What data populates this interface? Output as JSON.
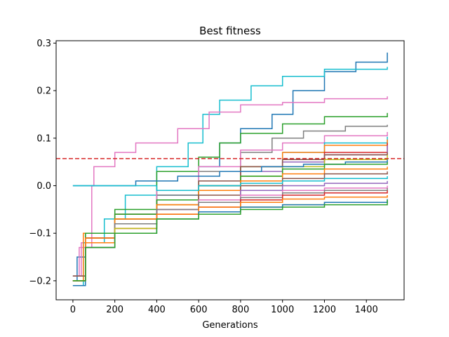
{
  "chart_data": {
    "type": "line",
    "title": "Best fitness",
    "xlabel": "Generations",
    "ylabel": "",
    "xlim": [
      -80,
      1580
    ],
    "ylim": [
      -0.24,
      0.305
    ],
    "xticks": [
      0,
      200,
      400,
      600,
      800,
      1000,
      1200,
      1400
    ],
    "xtick_labels": [
      "0",
      "200",
      "400",
      "600",
      "800",
      "1000",
      "1200",
      "1400"
    ],
    "yticks": [
      -0.2,
      -0.1,
      0.0,
      0.1,
      0.2,
      0.3
    ],
    "ytick_labels": [
      "−0.2",
      "−0.1",
      "0.0",
      "0.1",
      "0.2",
      "0.3"
    ],
    "grid": false,
    "legend": "none",
    "reference_line": {
      "y": 0.057,
      "color": "#d62728",
      "style": "dashed"
    },
    "series": [
      {
        "color": "#1f77b4",
        "points": [
          [
            0,
            -0.2
          ],
          [
            20,
            -0.15
          ],
          [
            60,
            -0.1
          ],
          [
            200,
            -0.06
          ],
          [
            400,
            -0.02
          ],
          [
            600,
            0.04
          ],
          [
            700,
            0.09
          ],
          [
            800,
            0.12
          ],
          [
            950,
            0.15
          ],
          [
            1050,
            0.2
          ],
          [
            1200,
            0.24
          ],
          [
            1350,
            0.26
          ],
          [
            1500,
            0.28
          ]
        ]
      },
      {
        "color": "#17becf",
        "points": [
          [
            0,
            -0.21
          ],
          [
            50,
            -0.12
          ],
          [
            150,
            -0.07
          ],
          [
            250,
            -0.02
          ],
          [
            400,
            0.04
          ],
          [
            550,
            0.09
          ],
          [
            620,
            0.15
          ],
          [
            700,
            0.18
          ],
          [
            850,
            0.21
          ],
          [
            1000,
            0.23
          ],
          [
            1200,
            0.245
          ],
          [
            1500,
            0.25
          ]
        ]
      },
      {
        "color": "#e377c2",
        "points": [
          [
            0,
            -0.19
          ],
          [
            30,
            -0.13
          ],
          [
            90,
            0.0
          ],
          [
            100,
            0.04
          ],
          [
            200,
            0.07
          ],
          [
            300,
            0.09
          ],
          [
            500,
            0.12
          ],
          [
            650,
            0.155
          ],
          [
            800,
            0.17
          ],
          [
            1000,
            0.175
          ],
          [
            1200,
            0.183
          ],
          [
            1500,
            0.188
          ]
        ]
      },
      {
        "color": "#2ca02c",
        "points": [
          [
            0,
            -0.19
          ],
          [
            60,
            -0.1
          ],
          [
            200,
            -0.05
          ],
          [
            400,
            0.03
          ],
          [
            600,
            0.06
          ],
          [
            700,
            0.09
          ],
          [
            800,
            0.11
          ],
          [
            1000,
            0.13
          ],
          [
            1200,
            0.145
          ],
          [
            1500,
            0.153
          ]
        ]
      },
      {
        "color": "#7f7f7f",
        "points": [
          [
            0,
            -0.2
          ],
          [
            60,
            -0.11
          ],
          [
            200,
            -0.06
          ],
          [
            400,
            -0.02
          ],
          [
            600,
            0.03
          ],
          [
            800,
            0.07
          ],
          [
            950,
            0.1
          ],
          [
            1100,
            0.115
          ],
          [
            1300,
            0.125
          ],
          [
            1500,
            0.128
          ]
        ]
      },
      {
        "color": "#e377c2",
        "points": [
          [
            0,
            -0.19
          ],
          [
            40,
            -0.12
          ],
          [
            200,
            -0.07
          ],
          [
            400,
            -0.01
          ],
          [
            600,
            0.04
          ],
          [
            800,
            0.075
          ],
          [
            1000,
            0.09
          ],
          [
            1200,
            0.105
          ],
          [
            1500,
            0.113
          ]
        ]
      },
      {
        "color": "#17becf",
        "points": [
          [
            0,
            -0.2
          ],
          [
            50,
            -0.12
          ],
          [
            200,
            -0.07
          ],
          [
            400,
            -0.03
          ],
          [
            600,
            0.01
          ],
          [
            800,
            0.04
          ],
          [
            1000,
            0.07
          ],
          [
            1200,
            0.09
          ],
          [
            1500,
            0.103
          ]
        ]
      },
      {
        "color": "#ff7f0e",
        "points": [
          [
            0,
            -0.2
          ],
          [
            50,
            -0.1
          ],
          [
            200,
            -0.06
          ],
          [
            400,
            -0.03
          ],
          [
            600,
            0.01
          ],
          [
            800,
            0.04
          ],
          [
            1000,
            0.07
          ],
          [
            1200,
            0.085
          ],
          [
            1500,
            0.097
          ]
        ]
      },
      {
        "color": "#d62728",
        "points": [
          [
            0,
            -0.2
          ],
          [
            60,
            -0.11
          ],
          [
            200,
            -0.07
          ],
          [
            400,
            -0.03
          ],
          [
            600,
            0.0
          ],
          [
            800,
            0.03
          ],
          [
            1000,
            0.05
          ],
          [
            1200,
            0.07
          ],
          [
            1500,
            0.09
          ]
        ]
      },
      {
        "color": "#9467bd",
        "points": [
          [
            0,
            -0.2
          ],
          [
            60,
            -0.12
          ],
          [
            200,
            -0.08
          ],
          [
            400,
            -0.04
          ],
          [
            600,
            0.0
          ],
          [
            800,
            0.03
          ],
          [
            1000,
            0.05
          ],
          [
            1200,
            0.065
          ],
          [
            1500,
            0.085
          ]
        ]
      },
      {
        "color": "#8c564b",
        "points": [
          [
            0,
            -0.19
          ],
          [
            60,
            -0.11
          ],
          [
            200,
            -0.07
          ],
          [
            400,
            -0.03
          ],
          [
            600,
            0.01
          ],
          [
            800,
            0.04
          ],
          [
            1000,
            0.055
          ],
          [
            1200,
            0.065
          ],
          [
            1500,
            0.07
          ]
        ]
      },
      {
        "color": "#bcbd22",
        "points": [
          [
            0,
            -0.2
          ],
          [
            60,
            -0.12
          ],
          [
            200,
            -0.07
          ],
          [
            400,
            -0.04
          ],
          [
            600,
            -0.01
          ],
          [
            800,
            0.02
          ],
          [
            1000,
            0.04
          ],
          [
            1200,
            0.055
          ],
          [
            1500,
            0.065
          ]
        ]
      },
      {
        "color": "#1f77b4",
        "points": [
          [
            0,
            0.0
          ],
          [
            150,
            0.0
          ],
          [
            300,
            0.01
          ],
          [
            500,
            0.02
          ],
          [
            700,
            0.03
          ],
          [
            900,
            0.04
          ],
          [
            1100,
            0.045
          ],
          [
            1300,
            0.05
          ],
          [
            1500,
            0.055
          ]
        ]
      },
      {
        "color": "#2ca02c",
        "points": [
          [
            0,
            -0.2
          ],
          [
            60,
            -0.1
          ],
          [
            200,
            -0.06
          ],
          [
            400,
            -0.03
          ],
          [
            600,
            0.0
          ],
          [
            800,
            0.02
          ],
          [
            1000,
            0.035
          ],
          [
            1200,
            0.045
          ],
          [
            1500,
            0.05
          ]
        ]
      },
      {
        "color": "#ff7f0e",
        "points": [
          [
            0,
            -0.2
          ],
          [
            60,
            -0.11
          ],
          [
            200,
            -0.07
          ],
          [
            400,
            -0.04
          ],
          [
            600,
            -0.01
          ],
          [
            800,
            0.01
          ],
          [
            1000,
            0.025
          ],
          [
            1200,
            0.035
          ],
          [
            1500,
            0.04
          ]
        ]
      },
      {
        "color": "#8c564b",
        "points": [
          [
            0,
            -0.2
          ],
          [
            60,
            -0.12
          ],
          [
            200,
            -0.08
          ],
          [
            400,
            -0.05
          ],
          [
            600,
            -0.02
          ],
          [
            800,
            0.0
          ],
          [
            1000,
            0.015
          ],
          [
            1200,
            0.025
          ],
          [
            1500,
            0.03
          ]
        ]
      },
      {
        "color": "#17becf",
        "points": [
          [
            0,
            0.0
          ],
          [
            200,
            0.0
          ],
          [
            400,
            -0.01
          ],
          [
            600,
            0.0
          ],
          [
            800,
            0.005
          ],
          [
            1000,
            0.01
          ],
          [
            1200,
            0.015
          ],
          [
            1500,
            0.02
          ]
        ]
      },
      {
        "color": "#9467bd",
        "points": [
          [
            0,
            -0.2
          ],
          [
            60,
            -0.12
          ],
          [
            200,
            -0.08
          ],
          [
            400,
            -0.05
          ],
          [
            600,
            -0.03
          ],
          [
            800,
            -0.01
          ],
          [
            1000,
            0.0
          ],
          [
            1200,
            0.005
          ],
          [
            1500,
            0.01
          ]
        ]
      },
      {
        "color": "#e377c2",
        "points": [
          [
            0,
            -0.2
          ],
          [
            60,
            -0.12
          ],
          [
            200,
            -0.08
          ],
          [
            400,
            -0.05
          ],
          [
            600,
            -0.03
          ],
          [
            800,
            -0.02
          ],
          [
            1000,
            -0.01
          ],
          [
            1200,
            -0.005
          ],
          [
            1500,
            0.0
          ]
        ]
      },
      {
        "color": "#7f7f7f",
        "points": [
          [
            0,
            -0.2
          ],
          [
            60,
            -0.12
          ],
          [
            200,
            -0.08
          ],
          [
            400,
            -0.05
          ],
          [
            600,
            -0.035
          ],
          [
            800,
            -0.025
          ],
          [
            1000,
            -0.015
          ],
          [
            1200,
            -0.01
          ],
          [
            1500,
            -0.005
          ]
        ]
      },
      {
        "color": "#d62728",
        "points": [
          [
            0,
            -0.2
          ],
          [
            60,
            -0.13
          ],
          [
            200,
            -0.09
          ],
          [
            400,
            -0.06
          ],
          [
            600,
            -0.045
          ],
          [
            800,
            -0.03
          ],
          [
            1000,
            -0.02
          ],
          [
            1200,
            -0.015
          ],
          [
            1500,
            -0.01
          ]
        ]
      },
      {
        "color": "#ff7f0e",
        "points": [
          [
            0,
            -0.2
          ],
          [
            60,
            -0.12
          ],
          [
            200,
            -0.09
          ],
          [
            400,
            -0.06
          ],
          [
            600,
            -0.045
          ],
          [
            800,
            -0.035
          ],
          [
            1000,
            -0.028
          ],
          [
            1200,
            -0.024
          ],
          [
            1500,
            -0.02
          ]
        ]
      },
      {
        "color": "#bcbd22",
        "points": [
          [
            0,
            -0.2
          ],
          [
            60,
            -0.13
          ],
          [
            200,
            -0.09
          ],
          [
            400,
            -0.07
          ],
          [
            600,
            -0.055
          ],
          [
            800,
            -0.045
          ],
          [
            1000,
            -0.04
          ],
          [
            1200,
            -0.035
          ],
          [
            1500,
            -0.03
          ]
        ]
      },
      {
        "color": "#1f77b4",
        "points": [
          [
            0,
            -0.21
          ],
          [
            60,
            -0.13
          ],
          [
            200,
            -0.1
          ],
          [
            400,
            -0.07
          ],
          [
            600,
            -0.055
          ],
          [
            800,
            -0.045
          ],
          [
            1000,
            -0.04
          ],
          [
            1200,
            -0.035
          ],
          [
            1500,
            -0.028
          ]
        ]
      },
      {
        "color": "#2ca02c",
        "points": [
          [
            0,
            -0.2
          ],
          [
            60,
            -0.13
          ],
          [
            200,
            -0.1
          ],
          [
            400,
            -0.07
          ],
          [
            600,
            -0.06
          ],
          [
            800,
            -0.05
          ],
          [
            1000,
            -0.045
          ],
          [
            1200,
            -0.04
          ],
          [
            1500,
            -0.03
          ]
        ]
      }
    ]
  }
}
